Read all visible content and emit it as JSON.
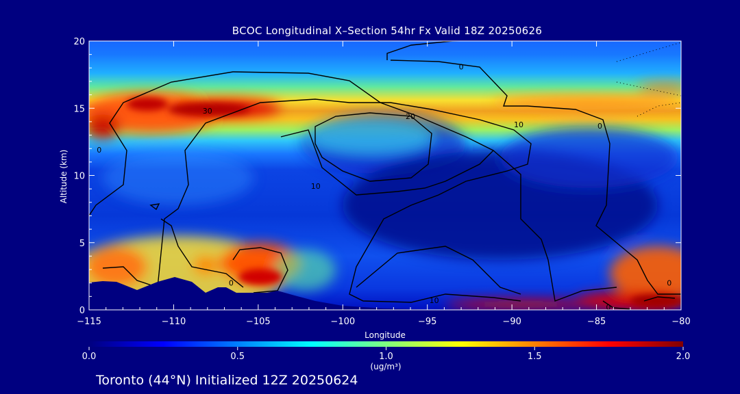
{
  "chart_data": {
    "type": "heatmap",
    "title": "BCOC Longitudinal X–Section 54hr  Fx Valid 18Z 20250626",
    "xlabel": "Longitude",
    "ylabel": "Altitude (km)",
    "xlim": [
      -115,
      -80
    ],
    "ylim": [
      0,
      20
    ],
    "x_ticks": [
      -115,
      -110,
      -105,
      -100,
      -95,
      -90,
      -85,
      -80
    ],
    "x_tick_labels": [
      "−115",
      "−110",
      "−105",
      "−100",
      "−95",
      "−90",
      "−85",
      "−80"
    ],
    "y_ticks": [
      0,
      5,
      10,
      15,
      20
    ],
    "y_tick_labels": [
      "0",
      "5",
      "10",
      "15",
      "20"
    ],
    "colorbar": {
      "min": 0.0,
      "max": 2.0,
      "ticks": [
        0.0,
        0.5,
        1.0,
        1.5,
        2.0
      ],
      "tick_labels": [
        "0.0",
        "0.5",
        "1.0",
        "1.5",
        "2.0"
      ],
      "unit_label": "(ug/m³)",
      "colormap": "jet"
    },
    "concentration_features": [
      {
        "lon_range": [
          -115,
          -104
        ],
        "alt_range": [
          12.5,
          15.8
        ],
        "peak": 1.9
      },
      {
        "lon_range": [
          -113,
          -94
        ],
        "alt_range": [
          16.0,
          17.2
        ],
        "peak": 1.2
      },
      {
        "lon_range": [
          -104,
          -80
        ],
        "alt_range": [
          14.3,
          15.3
        ],
        "peak": 1.6
      },
      {
        "lon_range": [
          -88,
          -80
        ],
        "alt_range": [
          15.7,
          16.5
        ],
        "peak": 1.4
      },
      {
        "lon_range": [
          -115,
          -100
        ],
        "alt_range": [
          1.0,
          5.5
        ],
        "peak": 1.3
      },
      {
        "lon_range": [
          -107,
          -104
        ],
        "alt_range": [
          2.0,
          3.8
        ],
        "peak": 1.9
      },
      {
        "lon_range": [
          -93,
          -80
        ],
        "alt_range": [
          0.1,
          1.2
        ],
        "peak": 1.9
      },
      {
        "lon_range": [
          -87,
          -80
        ],
        "alt_range": [
          0.8,
          4.0
        ],
        "peak": 1.6
      }
    ],
    "contour_labels": [
      {
        "text": "0",
        "lon": -93,
        "alt": 18.1
      },
      {
        "text": "30",
        "lon": -108,
        "alt": 14.8
      },
      {
        "text": "20",
        "lon": -96,
        "alt": 14.4
      },
      {
        "text": "10",
        "lon": -89.6,
        "alt": 13.8
      },
      {
        "text": "0",
        "lon": -84.8,
        "alt": 13.7
      },
      {
        "text": "0",
        "lon": -114.4,
        "alt": 11.9
      },
      {
        "text": "10",
        "lon": -101.6,
        "alt": 9.2
      },
      {
        "text": "0",
        "lon": -106.6,
        "alt": 2.0
      },
      {
        "text": "10",
        "lon": -94.6,
        "alt": 0.7
      },
      {
        "text": "0",
        "lon": -80.7,
        "alt": 2.0
      },
      {
        "text": "0",
        "lon": -84.3,
        "alt": 0.2
      }
    ]
  },
  "footer": {
    "caption": "Toronto (44°N) Initialized 12Z 20250624"
  },
  "colors": {
    "background": "#000080",
    "axis": "#ffffff",
    "terrain": "#000080",
    "contour": "#000000"
  }
}
